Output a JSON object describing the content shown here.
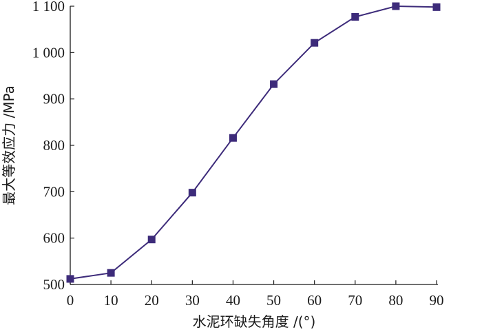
{
  "chart_data": {
    "type": "line",
    "title": "",
    "xlabel": "水泥环缺失角度 /(°)",
    "ylabel": "最大等效应力 /MPa",
    "xlim": [
      0,
      90
    ],
    "ylim": [
      500,
      1100
    ],
    "xticks": [
      0,
      10,
      20,
      30,
      40,
      50,
      60,
      70,
      80,
      90
    ],
    "xtick_labels": [
      "0",
      "10",
      "20",
      "30",
      "40",
      "50",
      "60",
      "70",
      "80",
      "90"
    ],
    "yticks": [
      500,
      600,
      700,
      800,
      900,
      1000,
      1100
    ],
    "ytick_labels": [
      "500",
      "600",
      "700",
      "800",
      "900",
      "1 000",
      "1 100"
    ],
    "grid": false,
    "legend": "none",
    "series": [
      {
        "marker": "square",
        "color": "#3d2b7a",
        "x": [
          0,
          10,
          20,
          30,
          40,
          50,
          60,
          70,
          80,
          90
        ],
        "y": [
          512,
          525,
          597,
          698,
          816,
          932,
          1021,
          1077,
          1100,
          1098
        ]
      }
    ]
  }
}
